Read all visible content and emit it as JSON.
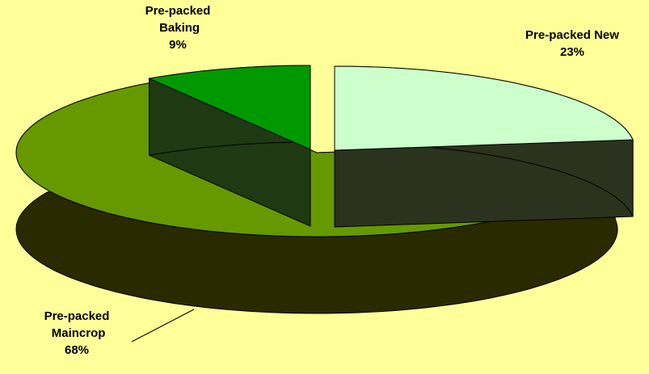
{
  "chart_data": {
    "type": "pie",
    "categories": [
      "Pre-packed New",
      "Pre-packed Maincrop",
      "Pre-packed Baking"
    ],
    "values": [
      23,
      68,
      9
    ],
    "value_labels": [
      "23%",
      "68%",
      "9%"
    ],
    "colors": [
      "#ccffcc",
      "#669900",
      "#009900"
    ]
  }
}
